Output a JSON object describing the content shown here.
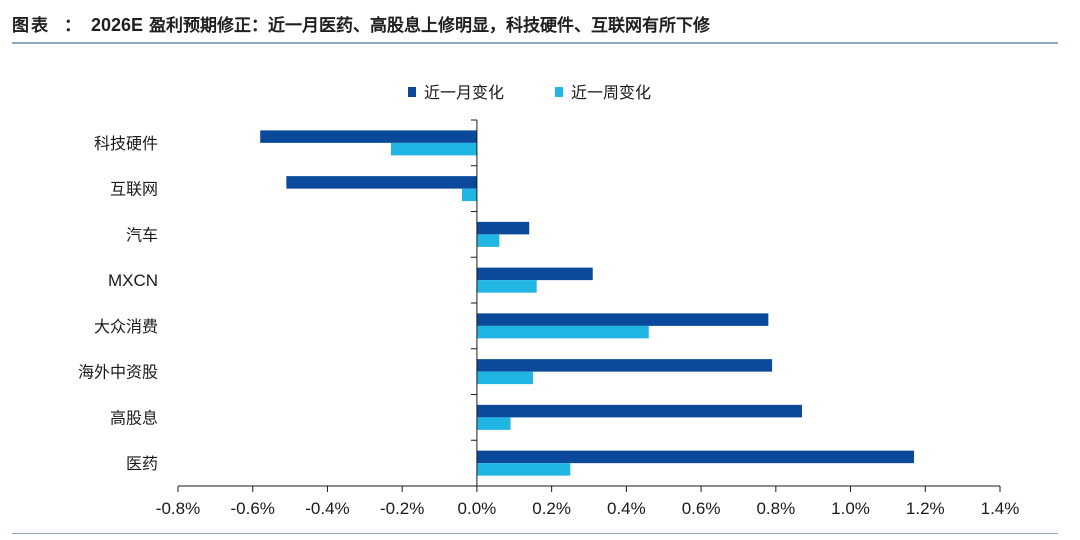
{
  "caption": {
    "prefix": "图表",
    "separator": "：",
    "year": "2026E",
    "text": "盈利预期修正：近一月医药、高股息上修明显，科技硬件、互联网有所下修"
  },
  "colors": {
    "month": "#0b4a9a",
    "week": "#21b5e3",
    "axis": "#1a1a1a",
    "rule": "#8fa7bd"
  },
  "chart_data": {
    "type": "bar",
    "orientation": "horizontal",
    "categories": [
      "科技硬件",
      "互联网",
      "汽车",
      "MXCN",
      "大众消费",
      "海外中资股",
      "高股息",
      "医药"
    ],
    "series": [
      {
        "name": "近一月变化",
        "values": [
          -0.58,
          -0.51,
          0.14,
          0.31,
          0.78,
          0.79,
          0.87,
          1.17
        ]
      },
      {
        "name": "近一周变化",
        "values": [
          -0.23,
          -0.04,
          0.06,
          0.16,
          0.46,
          0.15,
          0.09,
          0.25
        ]
      }
    ],
    "xlim": [
      -0.8,
      1.4
    ],
    "xticks": [
      "-0.8%",
      "-0.6%",
      "-0.4%",
      "-0.2%",
      "0.0%",
      "0.2%",
      "0.4%",
      "0.6%",
      "0.8%",
      "1.0%",
      "1.2%",
      "1.4%"
    ],
    "xlabel": "",
    "ylabel": "",
    "grid": false,
    "legend_position": "top-center"
  }
}
